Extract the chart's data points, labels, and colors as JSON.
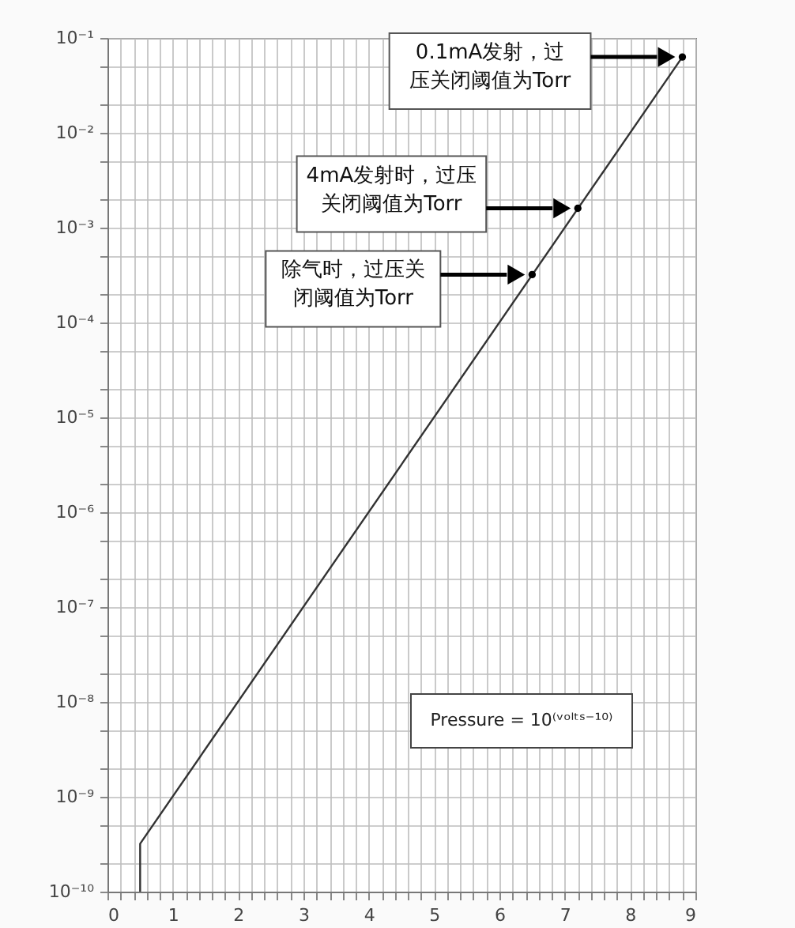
{
  "chart_data": {
    "type": "line",
    "log": "y",
    "grid": true,
    "xlim": [
      0,
      9
    ],
    "ylim": [
      1e-10,
      0.1
    ],
    "xticks": [
      0,
      {
        "value": 0.2,
        "label": null
      },
      {
        "value": 0.4,
        "label": null
      },
      {
        "value": 0.6,
        "label": null
      },
      {
        "value": 0.8,
        "label": null
      },
      1,
      {
        "value": 1.2,
        "label": null
      },
      {
        "value": 1.4,
        "label": null
      },
      {
        "value": 1.6,
        "label": null
      },
      {
        "value": 1.8,
        "label": null
      },
      2,
      {
        "value": 2.2,
        "label": null
      },
      {
        "value": 2.4,
        "label": null
      },
      {
        "value": 2.6,
        "label": null
      },
      {
        "value": 2.8,
        "label": null
      },
      3,
      {
        "value": 3.2,
        "label": null
      },
      {
        "value": 3.4,
        "label": null
      },
      {
        "value": 3.6,
        "label": null
      },
      {
        "value": 3.8,
        "label": null
      },
      4,
      {
        "value": 4.2,
        "label": null
      },
      {
        "value": 4.4,
        "label": null
      },
      {
        "value": 4.6,
        "label": null
      },
      {
        "value": 4.8,
        "label": null
      },
      5,
      {
        "value": 5.2,
        "label": null
      },
      {
        "value": 5.4,
        "label": null
      },
      {
        "value": 5.6,
        "label": null
      },
      {
        "value": 5.8,
        "label": null
      },
      6,
      {
        "value": 6.2,
        "label": null
      },
      {
        "value": 6.4,
        "label": null
      },
      {
        "value": 6.6,
        "label": null
      },
      {
        "value": 6.8,
        "label": null
      },
      7,
      {
        "value": 7.2,
        "label": null
      },
      {
        "value": 7.4,
        "label": null
      },
      {
        "value": 7.6,
        "label": null
      },
      {
        "value": 7.8,
        "label": null
      },
      8,
      {
        "value": 8.2,
        "label": null
      },
      {
        "value": 8.4,
        "label": null
      },
      {
        "value": 8.6,
        "label": null
      },
      {
        "value": 8.8,
        "label": null
      },
      9
    ],
    "yticks": [
      {
        "value": 1e-10,
        "label": "10⁻¹⁰"
      },
      {
        "value": 2e-10,
        "label": null
      },
      {
        "value": 5e-10,
        "label": null
      },
      {
        "value": 1e-09,
        "label": "10⁻⁹"
      },
      {
        "value": 2e-09,
        "label": null
      },
      {
        "value": 5e-09,
        "label": null
      },
      {
        "value": 1e-08,
        "label": "10⁻⁸"
      },
      {
        "value": 2e-08,
        "label": null
      },
      {
        "value": 5e-08,
        "label": null
      },
      {
        "value": 1e-07,
        "label": "10⁻⁷"
      },
      {
        "value": 2e-07,
        "label": null
      },
      {
        "value": 5e-07,
        "label": null
      },
      {
        "value": 1e-06,
        "label": "10⁻⁶"
      },
      {
        "value": 2e-06,
        "label": null
      },
      {
        "value": 5e-06,
        "label": null
      },
      {
        "value": 1e-05,
        "label": "10⁻⁵"
      },
      {
        "value": 2e-05,
        "label": null
      },
      {
        "value": 5e-05,
        "label": null
      },
      {
        "value": 0.0001,
        "label": "10⁻⁴"
      },
      {
        "value": 0.0002,
        "label": null
      },
      {
        "value": 0.0005,
        "label": null
      },
      {
        "value": 0.001,
        "label": "10⁻³"
      },
      {
        "value": 0.002,
        "label": null
      },
      {
        "value": 0.005,
        "label": null
      },
      {
        "value": 0.01,
        "label": "10⁻²"
      },
      {
        "value": 0.02,
        "label": null
      },
      {
        "value": 0.05,
        "label": null
      },
      {
        "value": 0.1,
        "label": "10⁻¹"
      }
    ],
    "series": [
      {
        "type": "line",
        "color": "#333333",
        "marker": "none",
        "x": [
          0.5,
          0.5,
          8.8
        ],
        "values": [
          1e-10,
          3.2e-10,
          0.063
        ]
      },
      {
        "type": "scatter",
        "color": "#000000",
        "marker": "circle",
        "x": [
          8.8,
          7.2,
          6.5
        ],
        "values": [
          0.063,
          0.0016,
          0.00032
        ]
      }
    ],
    "annotations": [
      "0.1mA发射，过压关闭阈值为Torr",
      "4mA发射时，过压关闭阈值为Torr",
      "除气时，过压关闭阈值为Torr",
      "Pressure = 10⁽ᵛᵒˡᵗˢ⁻¹⁰⁾"
    ]
  }
}
